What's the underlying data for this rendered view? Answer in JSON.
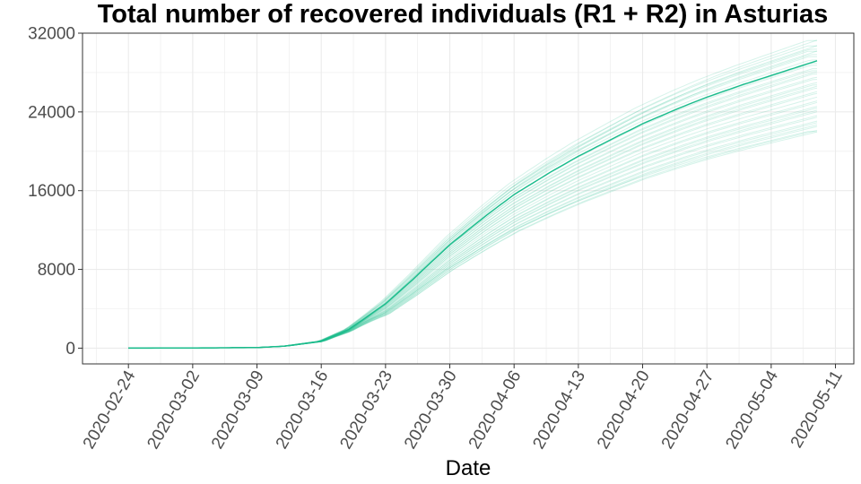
{
  "chart_data": {
    "type": "line",
    "title": "Total number of recovered individuals (R1 + R2) in  Asturias",
    "xlabel": "Date",
    "ylabel": "",
    "x_axis": {
      "type": "date",
      "range": [
        "2020-02-19",
        "2020-05-13"
      ],
      "ticks": [
        "2020-02-24",
        "2020-03-02",
        "2020-03-09",
        "2020-03-16",
        "2020-03-23",
        "2020-03-30",
        "2020-04-06",
        "2020-04-13",
        "2020-04-20",
        "2020-04-27",
        "2020-05-04",
        "2020-05-11"
      ]
    },
    "y_axis": {
      "range": [
        -1600,
        32000
      ],
      "ticks": [
        0,
        8000,
        16000,
        24000,
        32000
      ],
      "tick_labels": [
        "0",
        "8000",
        "16000",
        "24000",
        "32000"
      ]
    },
    "grid": true,
    "legend": "none",
    "colors": {
      "main": "#1abc8c",
      "ensemble": "#1abc8c",
      "panel_border": "#333333",
      "grid": "#ebebeb"
    },
    "main_series": {
      "x": [
        "2020-02-24",
        "2020-03-02",
        "2020-03-09",
        "2020-03-12",
        "2020-03-16",
        "2020-03-19",
        "2020-03-23",
        "2020-03-26",
        "2020-03-30",
        "2020-04-03",
        "2020-04-06",
        "2020-04-10",
        "2020-04-13",
        "2020-04-17",
        "2020-04-20",
        "2020-04-24",
        "2020-04-27",
        "2020-05-01",
        "2020-05-04",
        "2020-05-09"
      ],
      "y": [
        0,
        20,
        60,
        200,
        700,
        1900,
        4500,
        7000,
        10500,
        13500,
        15600,
        17900,
        19500,
        21400,
        22800,
        24400,
        25500,
        26800,
        27700,
        29200
      ]
    },
    "ensemble": {
      "count": 40,
      "final_values_range": [
        22000,
        31800
      ],
      "alpha": 0.18
    }
  }
}
